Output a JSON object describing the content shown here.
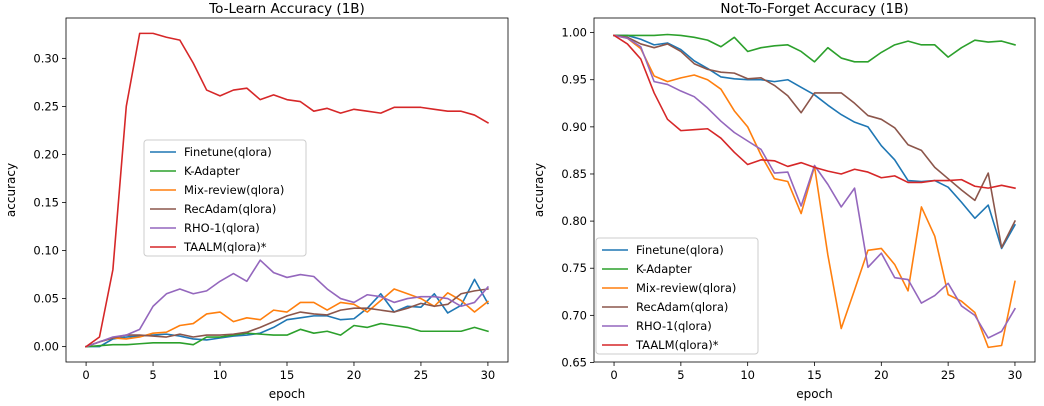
{
  "chart_data": [
    {
      "type": "line",
      "title": "To-Learn Accuracy (1B)",
      "xlabel": "epoch",
      "ylabel": "accuracy",
      "xlim": [
        -1.5,
        31.5
      ],
      "ylim": [
        -0.016,
        0.342
      ],
      "xticks": [
        0,
        5,
        10,
        15,
        20,
        25,
        30
      ],
      "yticks": [
        0.0,
        0.05,
        0.1,
        0.15,
        0.2,
        0.25,
        0.3
      ],
      "ytick_labels": [
        "0.00",
        "0.05",
        "0.10",
        "0.15",
        "0.20",
        "0.25",
        "0.30"
      ],
      "grid": false,
      "legend_position": "center-left",
      "x": [
        0,
        1,
        2,
        3,
        4,
        5,
        6,
        7,
        8,
        9,
        10,
        11,
        12,
        13,
        14,
        15,
        16,
        17,
        18,
        19,
        20,
        21,
        22,
        23,
        24,
        25,
        26,
        27,
        28,
        29,
        30
      ],
      "series": [
        {
          "name": "Finetune(qlora)",
          "color": "#1f77b4",
          "values": [
            0.0,
            0.0,
            0.008,
            0.01,
            0.011,
            0.012,
            0.013,
            0.011,
            0.008,
            0.007,
            0.009,
            0.011,
            0.012,
            0.014,
            0.02,
            0.028,
            0.03,
            0.032,
            0.032,
            0.028,
            0.029,
            0.04,
            0.055,
            0.036,
            0.042,
            0.041,
            0.055,
            0.035,
            0.043,
            0.07,
            0.045
          ]
        },
        {
          "name": "K-Adapter",
          "color": "#2ca02c",
          "values": [
            0.0,
            0.001,
            0.002,
            0.002,
            0.003,
            0.004,
            0.004,
            0.004,
            0.002,
            0.01,
            0.01,
            0.012,
            0.014,
            0.013,
            0.012,
            0.012,
            0.018,
            0.014,
            0.016,
            0.012,
            0.022,
            0.02,
            0.024,
            0.022,
            0.02,
            0.016,
            0.016,
            0.016,
            0.016,
            0.02,
            0.016
          ]
        },
        {
          "name": "Mix-review(qlora)",
          "color": "#ff7f0e",
          "values": [
            0.0,
            0.005,
            0.009,
            0.008,
            0.01,
            0.014,
            0.015,
            0.022,
            0.024,
            0.034,
            0.036,
            0.026,
            0.03,
            0.028,
            0.038,
            0.036,
            0.046,
            0.046,
            0.038,
            0.046,
            0.044,
            0.036,
            0.048,
            0.06,
            0.055,
            0.05,
            0.042,
            0.056,
            0.048,
            0.036,
            0.047
          ]
        },
        {
          "name": "RecAdam(qlora)",
          "color": "#8c564b",
          "values": [
            0.0,
            0.005,
            0.009,
            0.012,
            0.012,
            0.011,
            0.01,
            0.013,
            0.01,
            0.012,
            0.012,
            0.013,
            0.015,
            0.02,
            0.026,
            0.032,
            0.036,
            0.034,
            0.033,
            0.038,
            0.04,
            0.04,
            0.038,
            0.036,
            0.04,
            0.045,
            0.042,
            0.044,
            0.055,
            0.058,
            0.06
          ]
        },
        {
          "name": "RHO-1(qlora)",
          "color": "#9467bd",
          "values": [
            0.0,
            0.005,
            0.01,
            0.012,
            0.018,
            0.042,
            0.055,
            0.06,
            0.055,
            0.058,
            0.068,
            0.076,
            0.068,
            0.09,
            0.077,
            0.072,
            0.075,
            0.073,
            0.06,
            0.05,
            0.046,
            0.054,
            0.052,
            0.046,
            0.05,
            0.052,
            0.052,
            0.05,
            0.042,
            0.046,
            0.062
          ]
        },
        {
          "name": "TAALM(qlora)*",
          "color": "#d62728",
          "values": [
            0.0,
            0.01,
            0.08,
            0.25,
            0.326,
            0.326,
            0.322,
            0.319,
            0.295,
            0.267,
            0.261,
            0.267,
            0.269,
            0.257,
            0.262,
            0.257,
            0.255,
            0.245,
            0.248,
            0.243,
            0.247,
            0.245,
            0.243,
            0.249,
            0.249,
            0.249,
            0.247,
            0.245,
            0.245,
            0.241,
            0.233
          ]
        }
      ]
    },
    {
      "type": "line",
      "title": "Not-To-Forget Accuracy (1B)",
      "xlabel": "epoch",
      "ylabel": "accuracy",
      "xlim": [
        -1.5,
        31.5
      ],
      "ylim": [
        0.6505,
        1.0155
      ],
      "xticks": [
        0,
        5,
        10,
        15,
        20,
        25,
        30
      ],
      "yticks": [
        0.65,
        0.7,
        0.75,
        0.8,
        0.85,
        0.9,
        0.95,
        1.0
      ],
      "ytick_labels": [
        "0.65",
        "0.70",
        "0.75",
        "0.80",
        "0.85",
        "0.90",
        "0.95",
        "1.00"
      ],
      "grid": false,
      "legend_position": "lower-left",
      "x": [
        0,
        1,
        2,
        3,
        4,
        5,
        6,
        7,
        8,
        9,
        10,
        11,
        12,
        13,
        14,
        15,
        16,
        17,
        18,
        19,
        20,
        21,
        22,
        23,
        24,
        25,
        26,
        27,
        28,
        29,
        30
      ],
      "series": [
        {
          "name": "Finetune(qlora)",
          "color": "#1f77b4",
          "values": [
            0.997,
            0.997,
            0.993,
            0.987,
            0.989,
            0.982,
            0.97,
            0.962,
            0.953,
            0.951,
            0.95,
            0.95,
            0.948,
            0.95,
            0.942,
            0.934,
            0.923,
            0.913,
            0.905,
            0.9,
            0.88,
            0.865,
            0.843,
            0.842,
            0.843,
            0.836,
            0.82,
            0.803,
            0.817,
            0.771,
            0.796
          ]
        },
        {
          "name": "K-Adapter",
          "color": "#2ca02c",
          "values": [
            0.997,
            0.997,
            0.997,
            0.997,
            0.998,
            0.997,
            0.995,
            0.992,
            0.985,
            0.995,
            0.98,
            0.984,
            0.986,
            0.987,
            0.98,
            0.969,
            0.984,
            0.973,
            0.969,
            0.969,
            0.979,
            0.987,
            0.991,
            0.987,
            0.987,
            0.974,
            0.984,
            0.992,
            0.99,
            0.991,
            0.987
          ]
        },
        {
          "name": "Mix-review(qlora)",
          "color": "#ff7f0e",
          "values": [
            0.997,
            0.994,
            0.983,
            0.954,
            0.948,
            0.952,
            0.955,
            0.95,
            0.94,
            0.917,
            0.9,
            0.87,
            0.845,
            0.842,
            0.808,
            0.858,
            0.764,
            0.686,
            0.727,
            0.769,
            0.771,
            0.754,
            0.726,
            0.815,
            0.784,
            0.722,
            0.715,
            0.703,
            0.666,
            0.668,
            0.736
          ]
        },
        {
          "name": "RecAdam(qlora)",
          "color": "#8c564b",
          "values": [
            0.997,
            0.995,
            0.988,
            0.984,
            0.988,
            0.98,
            0.967,
            0.961,
            0.958,
            0.957,
            0.951,
            0.952,
            0.944,
            0.933,
            0.915,
            0.936,
            0.936,
            0.936,
            0.925,
            0.912,
            0.908,
            0.899,
            0.881,
            0.875,
            0.857,
            0.845,
            0.833,
            0.822,
            0.851,
            0.772,
            0.8
          ]
        },
        {
          "name": "RHO-1(qlora)",
          "color": "#9467bd",
          "values": [
            0.997,
            0.994,
            0.985,
            0.948,
            0.945,
            0.938,
            0.932,
            0.92,
            0.906,
            0.894,
            0.885,
            0.876,
            0.851,
            0.852,
            0.816,
            0.859,
            0.839,
            0.815,
            0.835,
            0.751,
            0.766,
            0.74,
            0.738,
            0.713,
            0.721,
            0.734,
            0.71,
            0.7,
            0.676,
            0.683,
            0.707
          ]
        },
        {
          "name": "TAALM(qlora)*",
          "color": "#d62728",
          "values": [
            0.997,
            0.988,
            0.972,
            0.936,
            0.908,
            0.896,
            0.897,
            0.898,
            0.888,
            0.873,
            0.86,
            0.865,
            0.864,
            0.858,
            0.862,
            0.857,
            0.853,
            0.85,
            0.855,
            0.852,
            0.846,
            0.848,
            0.841,
            0.841,
            0.843,
            0.843,
            0.844,
            0.837,
            0.835,
            0.838,
            0.835
          ]
        }
      ]
    }
  ]
}
